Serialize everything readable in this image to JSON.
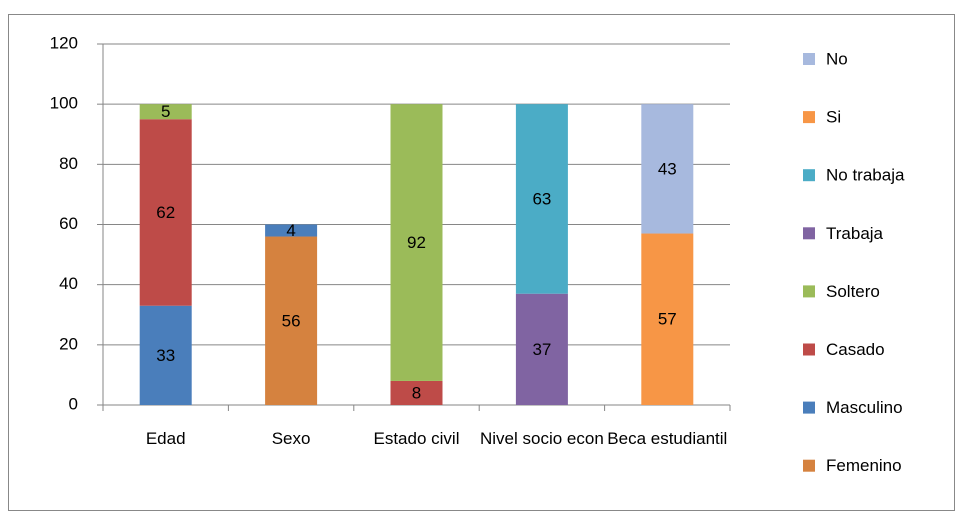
{
  "chart_data": {
    "type": "stacked_bar",
    "categories": [
      "Edad",
      "Sexo",
      "Estado civil",
      "Nivel socio econ",
      "Beca estudiantil"
    ],
    "series": [
      {
        "name": "Femenino",
        "color": "#d5823f",
        "values": [
          null,
          56,
          null,
          null,
          null
        ]
      },
      {
        "name": "Masculino",
        "color": "#4a7ebb",
        "values": [
          33,
          4,
          null,
          null,
          null
        ]
      },
      {
        "name": "Casado",
        "color": "#be4b48",
        "values": [
          62,
          null,
          8,
          null,
          null
        ]
      },
      {
        "name": "Soltero",
        "color": "#9bbb59",
        "values": [
          5,
          null,
          92,
          null,
          null
        ]
      },
      {
        "name": "Trabaja",
        "color": "#8064a2",
        "values": [
          null,
          null,
          null,
          37,
          null
        ]
      },
      {
        "name": "No trabaja",
        "color": "#4bacc6",
        "values": [
          null,
          null,
          null,
          63,
          null
        ]
      },
      {
        "name": "Si",
        "color": "#f79646",
        "values": [
          null,
          null,
          null,
          null,
          57
        ]
      },
      {
        "name": "No",
        "color": "#a7b9de",
        "values": [
          null,
          null,
          null,
          null,
          43
        ]
      }
    ],
    "ylim": [
      0,
      120
    ],
    "yticks": [
      0,
      20,
      40,
      60,
      80,
      100,
      120
    ],
    "grid": true,
    "legend": "right"
  }
}
